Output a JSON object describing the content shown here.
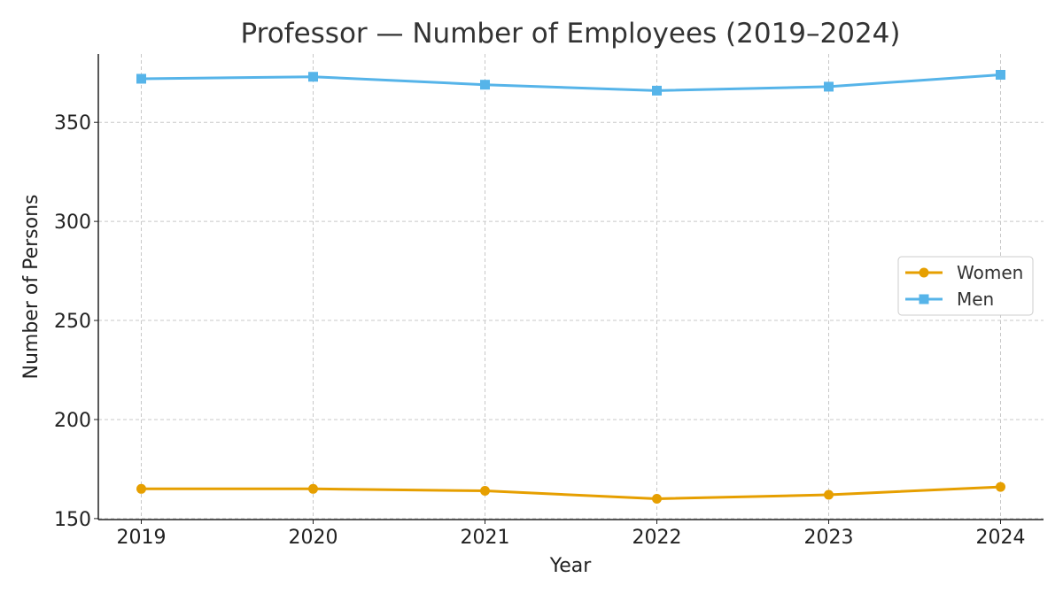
{
  "chart_data": {
    "type": "line",
    "title": "Professor — Number of Employees (2019–2024)",
    "xlabel": "Year",
    "ylabel": "Number of Persons",
    "x": [
      2019,
      2020,
      2021,
      2022,
      2023,
      2024
    ],
    "xticks": [
      "2019",
      "2020",
      "2021",
      "2022",
      "2023",
      "2024"
    ],
    "yticks": [
      150,
      200,
      250,
      300,
      350
    ],
    "xlim": [
      2018.75,
      2024.25
    ],
    "ylim": [
      149.5,
      384.5
    ],
    "grid": true,
    "legend_position": "center-right",
    "series": [
      {
        "name": "Women",
        "color": "#E69F00",
        "marker": "circle",
        "values": [
          165,
          165,
          164,
          160,
          162,
          166
        ]
      },
      {
        "name": "Men",
        "color": "#56B4E9",
        "marker": "square",
        "values": [
          372,
          373,
          369,
          366,
          368,
          374
        ]
      }
    ]
  }
}
